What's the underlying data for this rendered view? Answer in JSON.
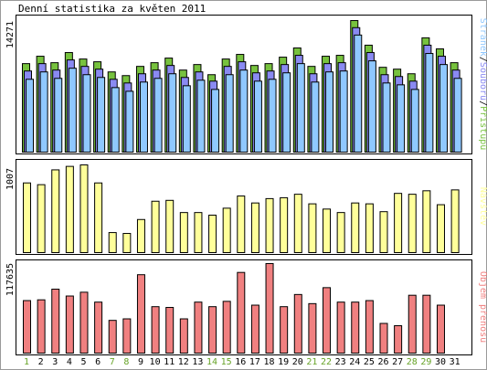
{
  "chart_data": {
    "type": "bar",
    "title": "Denní statistika za květen 2011",
    "categories": [
      "1",
      "2",
      "3",
      "4",
      "5",
      "6",
      "7",
      "8",
      "9",
      "10",
      "11",
      "12",
      "13",
      "14",
      "15",
      "16",
      "17",
      "18",
      "19",
      "20",
      "21",
      "22",
      "23",
      "24",
      "25",
      "26",
      "27",
      "28",
      "29",
      "30",
      "31"
    ],
    "weekend_days": [
      "1",
      "7",
      "8",
      "14",
      "15",
      "21",
      "22",
      "28",
      "29"
    ],
    "colors": {
      "background": "#ffffff",
      "border": "#000000",
      "weekday_label": "#000000",
      "weekend_label": "#66a326",
      "hits": "#77c23e",
      "files": "#8a8af2",
      "pages": "#8fc8ff",
      "visits": "#ffff9a",
      "kbytes": "#f08080"
    },
    "panels": [
      {
        "label_parts": [
          {
            "text": "Stránek",
            "color": "#8fc8ff"
          },
          {
            "text": "/",
            "color": "#000000"
          },
          {
            "text": "Souborů",
            "color": "#8a8af2"
          },
          {
            "text": "/",
            "color": "#000000"
          },
          {
            "text": "Přístupů",
            "color": "#77c23e"
          }
        ],
        "ymax_label": "14271",
        "ymax": 14271,
        "series": [
          {
            "key": "hits",
            "values": [
              9600,
              10400,
              9700,
              10800,
              10100,
              9800,
              8700,
              8300,
              9300,
              9700,
              10200,
              8900,
              9500,
              8400,
              10100,
              10600,
              9400,
              9600,
              10300,
              11300,
              9300,
              10400,
              10500,
              14271,
              11600,
              9200,
              9000,
              8500,
              12400,
              11200,
              9700
            ]
          },
          {
            "key": "files",
            "values": [
              8800,
              9600,
              8900,
              10000,
              9300,
              9000,
              7900,
              7500,
              8500,
              8900,
              9400,
              8100,
              8700,
              7700,
              9300,
              9800,
              8600,
              8800,
              9500,
              10500,
              8500,
              9600,
              9700,
              13500,
              10800,
              8400,
              8200,
              7700,
              11600,
              10400,
              8900
            ]
          },
          {
            "key": "pages",
            "values": [
              7900,
              8700,
              8000,
              9100,
              8400,
              8100,
              7000,
              6600,
              7600,
              8000,
              8500,
              7200,
              7800,
              6800,
              8400,
              8900,
              7700,
              7900,
              8600,
              9600,
              7600,
              8700,
              8800,
              12700,
              9900,
              7500,
              7300,
              6800,
              10700,
              9500,
              8000
            ]
          }
        ]
      },
      {
        "label_parts": [
          {
            "text": "Návštěv",
            "color": "#ffff9a"
          }
        ],
        "ymax_label": "1007",
        "ymax": 1007,
        "series": [
          {
            "key": "visits",
            "values": [
              800,
              780,
              950,
              990,
              1007,
              800,
              230,
              220,
              380,
              590,
              600,
              460,
              460,
              430,
              510,
              650,
              570,
              620,
              630,
              670,
              560,
              500,
              460,
              570,
              560,
              470,
              680,
              670,
              710,
              550,
              720
            ]
          }
        ]
      },
      {
        "label_parts": [
          {
            "text": "Objem přenosu",
            "color": "#f08080"
          }
        ],
        "ymax_label": "117635",
        "ymax": 117635,
        "series": [
          {
            "key": "kbytes",
            "values": [
              69000,
              70000,
              84000,
              75000,
              80000,
              67000,
              43000,
              45000,
              103000,
              61000,
              60000,
              45000,
              67000,
              61000,
              68000,
              106000,
              63000,
              117635,
              61000,
              77000,
              65000,
              86000,
              67000,
              67000,
              69000,
              39000,
              36000,
              76000,
              76000,
              63000,
              null
            ]
          }
        ]
      }
    ]
  }
}
